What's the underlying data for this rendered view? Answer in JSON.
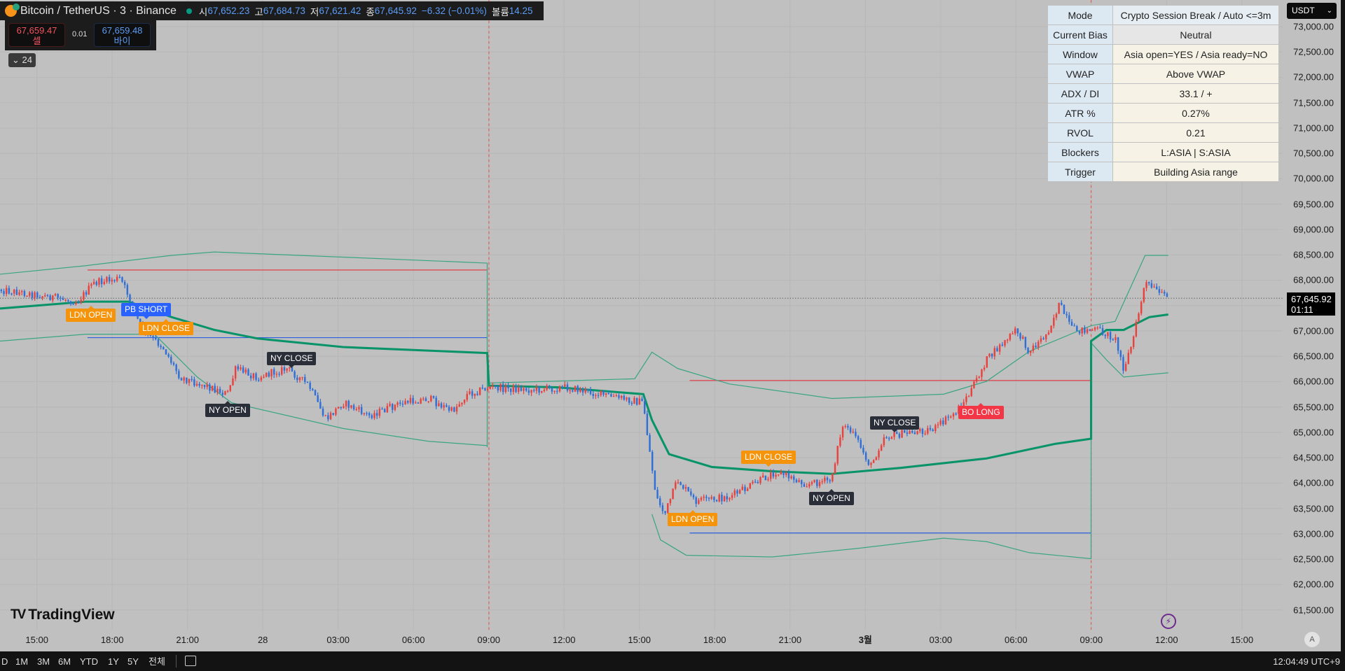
{
  "header": {
    "symbol": "Bitcoin / TetherUS · 3 · Binance",
    "open_label": "시",
    "open": "67,652.23",
    "high_label": "고",
    "high": "67,684.73",
    "low_label": "저",
    "low": "67,621.42",
    "close_label": "종",
    "close": "67,645.92",
    "change": "−6.32 (−0.01%)",
    "volume_label": "볼륨",
    "volume": "14.25"
  },
  "bidask": {
    "sell_price": "67,659.47",
    "sell_label": "셀",
    "spread": "0.01",
    "buy_price": "67,659.48",
    "buy_label": "바이"
  },
  "indicators_toggle": "24",
  "info_table": [
    {
      "key": "Mode",
      "value": "Crypto Session Break / Auto <=3m"
    },
    {
      "key": "Current Bias",
      "value": "Neutral"
    },
    {
      "key": "Window",
      "value": "Asia open=YES / Asia ready=NO"
    },
    {
      "key": "VWAP",
      "value": "Above VWAP"
    },
    {
      "key": "ADX / DI",
      "value": "33.1 / +"
    },
    {
      "key": "ATR %",
      "value": "0.27%"
    },
    {
      "key": "RVOL",
      "value": "0.21"
    },
    {
      "key": "Blockers",
      "value": "L:ASIA | S:ASIA"
    },
    {
      "key": "Trigger",
      "value": "Building Asia range"
    }
  ],
  "price_axis": {
    "currency": "USDT",
    "ticks": [
      "73,000.00",
      "72,500.00",
      "72,000.00",
      "71,500.00",
      "71,000.00",
      "70,500.00",
      "70,000.00",
      "69,500.00",
      "69,000.00",
      "68,500.00",
      "68,000.00",
      "67,500.00",
      "67,000.00",
      "66,500.00",
      "66,000.00",
      "65,500.00",
      "65,000.00",
      "64,500.00",
      "64,000.00",
      "63,500.00",
      "63,000.00",
      "62,500.00",
      "62,000.00",
      "61,500.00"
    ],
    "current_price": "67,645.92",
    "countdown": "01:11"
  },
  "time_axis": [
    "15:00",
    "18:00",
    "21:00",
    "28",
    "03:00",
    "06:00",
    "09:00",
    "12:00",
    "15:00",
    "18:00",
    "21:00",
    "3월",
    "03:00",
    "06:00",
    "09:00",
    "12:00",
    "15:00"
  ],
  "markers": [
    {
      "text": "LDN OPEN",
      "kind": "session-open"
    },
    {
      "text": "PB SHORT",
      "kind": "signal-short"
    },
    {
      "text": "LDN CLOSE",
      "kind": "session-close"
    },
    {
      "text": "NY CLOSE",
      "kind": "ny"
    },
    {
      "text": "NY OPEN",
      "kind": "ny"
    },
    {
      "text": "LDN CLOSE",
      "kind": "session-close"
    },
    {
      "text": "LDN OPEN",
      "kind": "session-open"
    },
    {
      "text": "NY OPEN",
      "kind": "ny"
    },
    {
      "text": "NY CLOSE",
      "kind": "ny"
    },
    {
      "text": "BO LONG",
      "kind": "signal-long"
    }
  ],
  "colors": {
    "up_candle": "#e8423f",
    "down_candle": "#2f6fd6",
    "vwap": "#089468",
    "band": "#3aa583",
    "range_high": "#e0404a",
    "range_low": "#2b5fe0",
    "session_orange": "#f5930b",
    "ny_dark": "#2a2e39",
    "short_blue": "#2962ff",
    "long_red": "#f23645"
  },
  "logo": "TradingView",
  "bottom_bar": {
    "ranges": [
      "D",
      "1M",
      "3M",
      "6M",
      "YTD",
      "1Y",
      "5Y",
      "전체"
    ],
    "clock": "12:04:49 UTC+9"
  }
}
